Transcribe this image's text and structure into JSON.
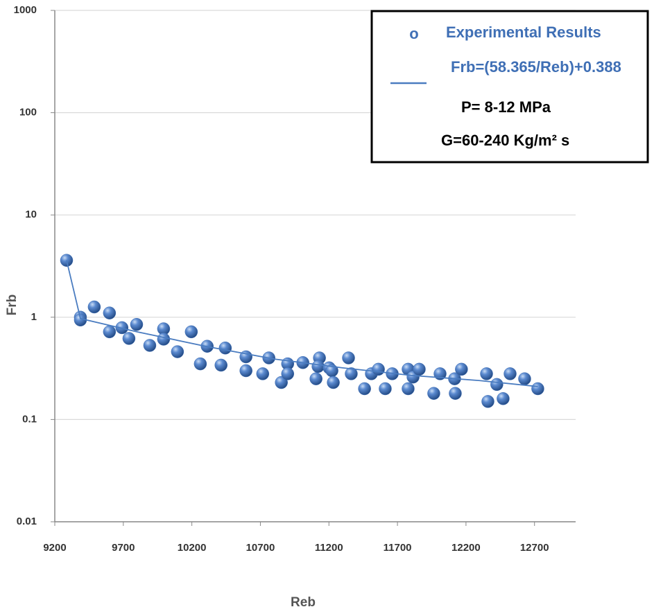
{
  "chart_data": {
    "type": "scatter",
    "x_label": "Reb",
    "y_label": "Frb",
    "xlim": [
      9200,
      13000
    ],
    "xticks": [
      9200,
      9700,
      10200,
      10700,
      11200,
      11700,
      12200,
      12700
    ],
    "ylim": [
      0.01,
      1000
    ],
    "yticks": [
      0.01,
      0.1,
      1,
      10,
      100,
      1000
    ],
    "ylog": true,
    "grid": true,
    "legend": "upper right",
    "annotations": [
      "P= 8-12 MPa",
      "G=60-240 Kg/m² s"
    ],
    "series": [
      {
        "name": "Experimental Results",
        "color": "#3f6fb5",
        "mode": "markers",
        "x": [
          9286,
          9387,
          9387,
          9488,
          9599,
          9599,
          9690,
          9741,
          9797,
          9893,
          9994,
          9994,
          10095,
          10196,
          10262,
          10312,
          10413,
          10444,
          10595,
          10595,
          10717,
          10762,
          10853,
          10899,
          10899,
          11010,
          11106,
          11131,
          11121,
          11202,
          11222,
          11232,
          11343,
          11363,
          11460,
          11510,
          11561,
          11611,
          11662,
          11778,
          11778,
          11814,
          11859,
          11965,
          12011,
          12117,
          12122,
          12167,
          12350,
          12360,
          12425,
          12471,
          12522,
          12628,
          12724
        ],
        "values": [
          3.6,
          1.0,
          0.94,
          1.26,
          1.1,
          0.72,
          0.79,
          0.62,
          0.85,
          0.53,
          0.77,
          0.61,
          0.46,
          0.72,
          0.35,
          0.52,
          0.34,
          0.5,
          0.41,
          0.3,
          0.28,
          0.4,
          0.23,
          0.35,
          0.28,
          0.36,
          0.25,
          0.4,
          0.33,
          0.32,
          0.3,
          0.23,
          0.4,
          0.28,
          0.2,
          0.28,
          0.31,
          0.2,
          0.28,
          0.31,
          0.2,
          0.26,
          0.31,
          0.18,
          0.28,
          0.25,
          0.18,
          0.31,
          0.28,
          0.15,
          0.22,
          0.16,
          0.28,
          0.25,
          0.2
        ]
      },
      {
        "name": "Frb=(58.365/Reb)+0.388",
        "color": "#4a7cc0",
        "mode": "line",
        "x": [
          9286,
          9387,
          9800,
          10300,
          10800,
          11300,
          11800,
          12300,
          12724
        ],
        "values": [
          3.6,
          0.97,
          0.72,
          0.52,
          0.39,
          0.32,
          0.27,
          0.24,
          0.21
        ]
      }
    ]
  }
}
